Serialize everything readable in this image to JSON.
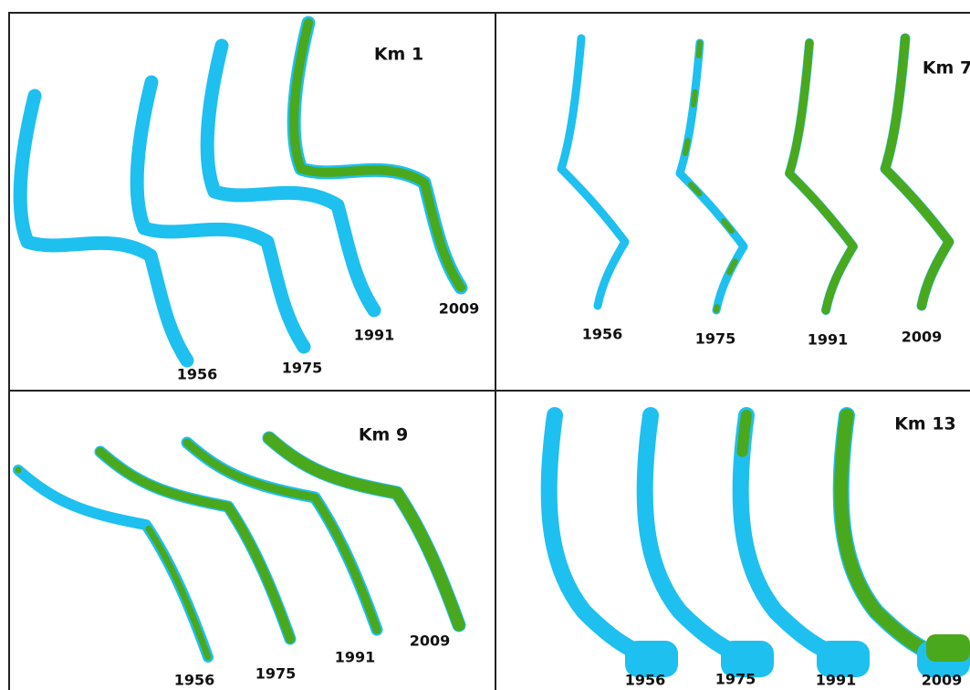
{
  "panels": [
    {
      "title": "Km 1",
      "years": [
        "1956",
        "1975",
        "1991",
        "2009"
      ]
    },
    {
      "title": "Km 7",
      "years": [
        "1956",
        "1975",
        "1991",
        "2009"
      ]
    },
    {
      "title": "Km 9",
      "years": [
        "1956",
        "1975",
        "1991",
        "2009"
      ]
    },
    {
      "title": "Km 13",
      "years": [
        "1956",
        "1975",
        "1991",
        "2009"
      ]
    }
  ]
}
